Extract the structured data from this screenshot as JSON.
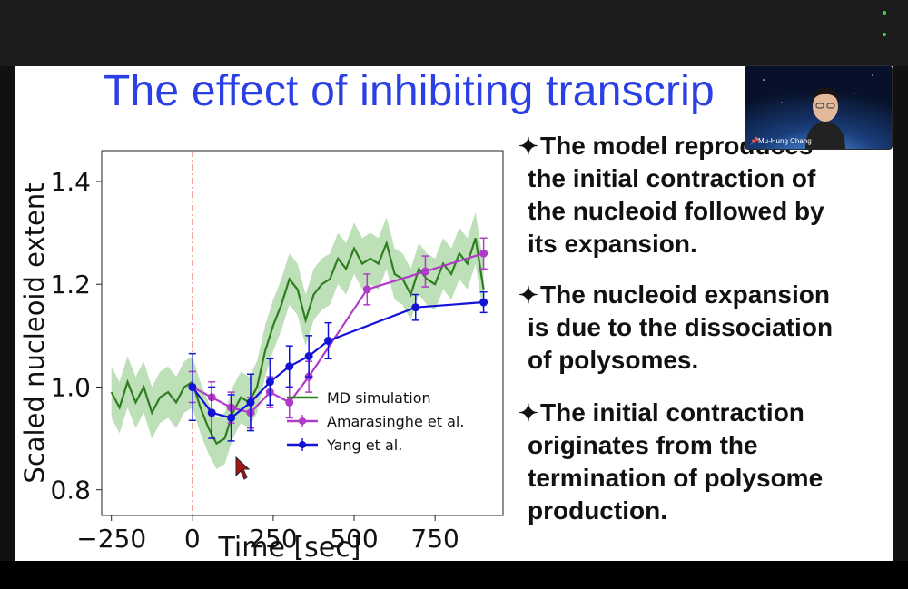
{
  "slide": {
    "title": "The effect of inhibiting transcrip",
    "bullets": [
      {
        "lines": [
          "The model reproduces",
          "the initial contraction of",
          "the nucleoid followed by",
          "its expansion."
        ]
      },
      {
        "lines": [
          "The nucleoid expansion",
          "is due to the dissociation",
          "of polysomes."
        ]
      },
      {
        "lines": [
          "The initial contraction",
          "originates from the",
          "termination of polysome",
          "production."
        ]
      }
    ]
  },
  "video": {
    "participant_name": "Mu-Hung Chang"
  },
  "colors": {
    "title": "#2a3fe4",
    "md": "#2e7d1f",
    "md_band": "#a8d5a0",
    "amarasinghe": "#b03bc8",
    "yang": "#1313d8",
    "marker_line": "#e0402a",
    "accent_green": "#3ddc4a"
  },
  "chart_data": {
    "type": "line",
    "xlabel": "Time [sec]",
    "ylabel": "Scaled nucleoid extent",
    "xlim": [
      -280,
      960
    ],
    "ylim": [
      0.75,
      1.46
    ],
    "xticks": [
      -250,
      0,
      250,
      500,
      750
    ],
    "xtick_labels": [
      "−250",
      "0",
      "250",
      "500",
      "750"
    ],
    "yticks": [
      0.8,
      1.0,
      1.2,
      1.4
    ],
    "ytick_labels": [
      "0.8",
      "1.0",
      "1.2",
      "1.4"
    ],
    "vline_x": 0,
    "legend_position": "lower-right",
    "series": [
      {
        "name": "MD simulation",
        "style": "line-band",
        "x": [
          -250,
          -225,
          -200,
          -175,
          -150,
          -125,
          -100,
          -75,
          -50,
          -25,
          0,
          25,
          50,
          75,
          100,
          125,
          150,
          175,
          200,
          225,
          250,
          275,
          300,
          325,
          350,
          375,
          400,
          425,
          450,
          475,
          500,
          525,
          550,
          575,
          600,
          625,
          650,
          675,
          700,
          725,
          750,
          775,
          800,
          825,
          850,
          875,
          900
        ],
        "y": [
          0.99,
          0.96,
          1.01,
          0.97,
          1.0,
          0.95,
          0.98,
          0.99,
          0.97,
          1.0,
          1.01,
          0.96,
          0.92,
          0.89,
          0.9,
          0.95,
          0.98,
          0.97,
          1.0,
          1.07,
          1.12,
          1.16,
          1.21,
          1.19,
          1.13,
          1.18,
          1.2,
          1.21,
          1.25,
          1.23,
          1.27,
          1.24,
          1.25,
          1.24,
          1.28,
          1.22,
          1.21,
          1.18,
          1.23,
          1.21,
          1.2,
          1.24,
          1.22,
          1.26,
          1.24,
          1.29,
          1.19
        ],
        "band": 0.05
      },
      {
        "name": "Amarasinghe et al.",
        "style": "errorbar",
        "x": [
          0,
          60,
          120,
          180,
          240,
          300,
          360,
          540,
          720,
          900
        ],
        "y": [
          1.0,
          0.98,
          0.96,
          0.95,
          0.99,
          0.97,
          1.02,
          1.19,
          1.225,
          1.26
        ],
        "err": [
          0.03,
          0.03,
          0.03,
          0.03,
          0.03,
          0.03,
          0.03,
          0.03,
          0.03,
          0.03
        ]
      },
      {
        "name": "Yang et al.",
        "style": "errorbar",
        "x": [
          0,
          60,
          120,
          180,
          240,
          300,
          360,
          420,
          690,
          900
        ],
        "y": [
          1.0,
          0.95,
          0.94,
          0.97,
          1.01,
          1.04,
          1.06,
          1.09,
          1.155,
          1.165
        ],
        "err": [
          0.065,
          0.05,
          0.045,
          0.055,
          0.045,
          0.04,
          0.04,
          0.035,
          0.025,
          0.02
        ]
      }
    ]
  }
}
